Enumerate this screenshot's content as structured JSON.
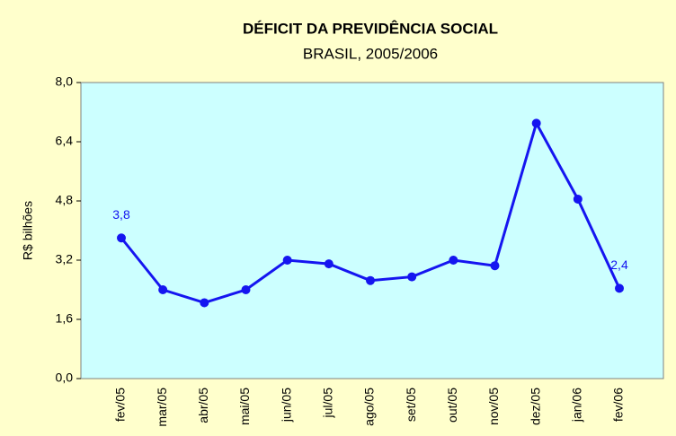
{
  "chart_data": {
    "type": "line",
    "title": "DÉFICIT DA PREVIDÊNCIA SOCIAL",
    "subtitle": "BRASIL, 2005/2006",
    "y_label": "R$ bilhões",
    "categories": [
      "fev/05",
      "mar/05",
      "abr/05",
      "mai/05",
      "jun/05",
      "jul/05",
      "ago/05",
      "set/05",
      "out/05",
      "nov/05",
      "dez/05",
      "jan/06",
      "fev/06"
    ],
    "series": [
      {
        "name": "Déficit",
        "color": "#1515f0",
        "values": [
          3.8,
          2.4,
          2.05,
          2.4,
          3.2,
          3.1,
          2.65,
          2.75,
          3.2,
          3.05,
          6.9,
          4.85,
          2.44
        ],
        "value_labels": [
          "3,8",
          null,
          null,
          null,
          null,
          null,
          null,
          null,
          null,
          null,
          null,
          null,
          "2,4"
        ]
      }
    ],
    "ylim": [
      0,
      8
    ],
    "yticks": [
      {
        "value": 0,
        "label": "0,0"
      },
      {
        "value": 1.6,
        "label": "1,6"
      },
      {
        "value": 3.2,
        "label": "3,2"
      },
      {
        "value": 4.8,
        "label": "4,8"
      },
      {
        "value": 6.4,
        "label": "6,4"
      },
      {
        "value": 8,
        "label": "8,0"
      }
    ],
    "grid": false
  }
}
